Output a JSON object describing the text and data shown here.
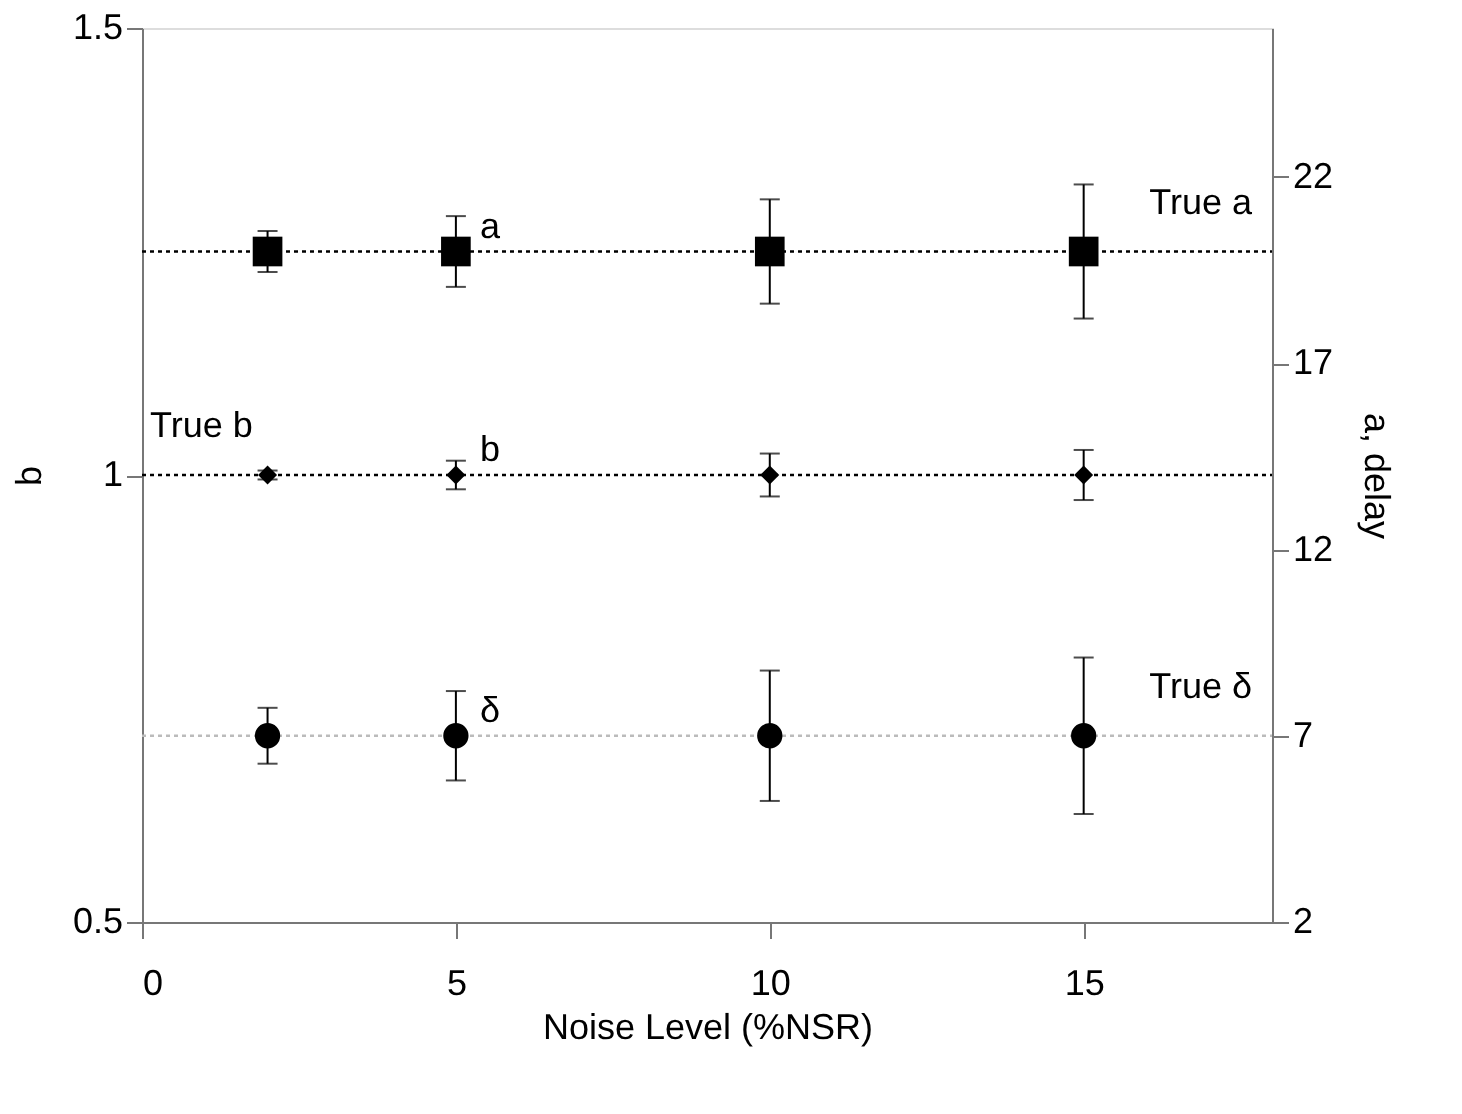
{
  "chart_data": {
    "type": "scatter",
    "xlabel": "Noise Level (%NSR)",
    "ylabel": "b",
    "y2label": "a, delay",
    "x": [
      2,
      5,
      10,
      15
    ],
    "xlim": [
      0,
      18
    ],
    "xticks": [
      0,
      5,
      10,
      15
    ],
    "ylim": [
      0.5,
      1.5
    ],
    "yticks": [
      0.5,
      {
        "value": 1,
        "label": "1"
      },
      1.5
    ],
    "y2lim": [
      2,
      26
    ],
    "y2ticks": [
      2,
      7,
      12,
      17,
      22
    ],
    "series": [
      {
        "name": "a",
        "color": "#000000",
        "axis": "y2",
        "marker": "square",
        "values": [
          20,
          20,
          20,
          20
        ],
        "errors": [
          0.55,
          0.95,
          1.4,
          1.8
        ]
      },
      {
        "name": "b",
        "color": "#000000",
        "marker": "diamond",
        "values": [
          1,
          1,
          1,
          1
        ],
        "errors": [
          0.005,
          0.016,
          0.024,
          0.028
        ]
      },
      {
        "name": "δ",
        "color": "#000000",
        "axis": "y2",
        "marker": "circle",
        "values": [
          7,
          7,
          7,
          7
        ],
        "errors": [
          0.75,
          1.2,
          1.75,
          2.1
        ]
      }
    ],
    "ref_lines": [
      {
        "axis": "y2",
        "value": 20,
        "label": "True a",
        "color": "#000000",
        "line_style": "dotted"
      },
      {
        "axis": "y",
        "value": 1,
        "label": "True b",
        "color": "#000000",
        "line_style": "dotted"
      },
      {
        "axis": "y2",
        "value": 7,
        "label": "True δ",
        "color": "#bbbbbb",
        "line_style": "dotted"
      }
    ],
    "grid": false,
    "legend": false
  }
}
